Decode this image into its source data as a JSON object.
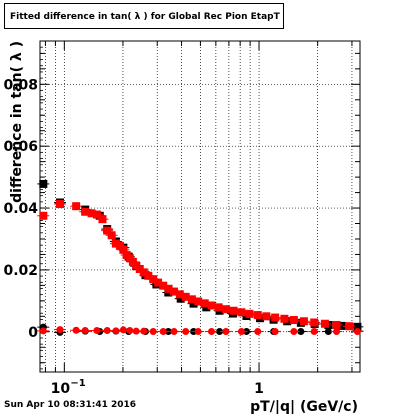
{
  "chart_data": {
    "type": "scatter",
    "title": "Fitted difference in tan( λ ) for Global Rec Pion EtapT",
    "xlabel": "pT/|q| (GeV/c)",
    "ylabel": "difference in tan( λ )",
    "x_scale": "log",
    "xlim": [
      0.075,
      3.3
    ],
    "ylim": [
      -0.013,
      0.094
    ],
    "grid": true,
    "x_tick_labels": [
      {
        "value": 0.1,
        "label": "10",
        "exponent": "−1"
      },
      {
        "value": 1,
        "label": "1",
        "exponent": ""
      }
    ],
    "y_tick_labels": [
      {
        "value": 0,
        "label": "0"
      },
      {
        "value": 0.02,
        "label": "0.02"
      },
      {
        "value": 0.04,
        "label": "0.04"
      },
      {
        "value": 0.06,
        "label": "0.06"
      },
      {
        "value": 0.08,
        "label": "0.08"
      }
    ],
    "series": [
      {
        "color": "#000000",
        "marker": "square",
        "x": [
          0.078,
          0.095,
          0.128,
          0.152,
          0.166,
          0.184,
          0.201,
          0.214,
          0.234,
          0.261,
          0.297,
          0.342,
          0.396,
          0.461,
          0.536,
          0.627,
          0.735,
          0.862,
          1.012,
          1.188,
          1.395,
          1.64,
          1.93,
          2.27,
          2.67,
          3.2
        ],
        "y": [
          0.0478,
          0.0418,
          0.0395,
          0.0375,
          0.0332,
          0.0292,
          0.0272,
          0.0243,
          0.0212,
          0.0183,
          0.0153,
          0.0127,
          0.0107,
          0.0091,
          0.0079,
          0.0068,
          0.0059,
          0.0051,
          0.0044,
          0.0039,
          0.0034,
          0.0029,
          0.0025,
          0.0022,
          0.0019,
          0.0016
        ]
      },
      {
        "color": "#ff0000",
        "marker": "square",
        "x": [
          0.078,
          0.095,
          0.115,
          0.128,
          0.138,
          0.147,
          0.157,
          0.166,
          0.175,
          0.184,
          0.193,
          0.201,
          0.209,
          0.217,
          0.225,
          0.234,
          0.244,
          0.256,
          0.27,
          0.286,
          0.303,
          0.322,
          0.343,
          0.366,
          0.392,
          0.42,
          0.452,
          0.487,
          0.526,
          0.57,
          0.62,
          0.676,
          0.74,
          0.812,
          0.893,
          0.985,
          1.09,
          1.21,
          1.35,
          1.51,
          1.7,
          1.92,
          2.18,
          2.5,
          2.9
        ],
        "y": [
          0.0375,
          0.0413,
          0.0406,
          0.0388,
          0.0383,
          0.0379,
          0.0364,
          0.0327,
          0.0312,
          0.0285,
          0.0278,
          0.0265,
          0.0248,
          0.0238,
          0.0226,
          0.0214,
          0.0203,
          0.0192,
          0.0181,
          0.017,
          0.0159,
          0.0149,
          0.0139,
          0.013,
          0.0121,
          0.0113,
          0.0105,
          0.0098,
          0.0092,
          0.0085,
          0.0079,
          0.0073,
          0.0068,
          0.0063,
          0.0058,
          0.0054,
          0.005,
          0.0046,
          0.0042,
          0.0038,
          0.0034,
          0.003,
          0.0026,
          0.0022,
          0.0018
        ]
      },
      {
        "color": "#000000",
        "marker": "circle",
        "x": [
          0.078,
          0.095,
          0.128,
          0.152,
          0.184,
          0.214,
          0.261,
          0.342,
          0.461,
          0.627,
          0.862,
          1.188,
          1.64,
          2.27,
          3.2
        ],
        "y": [
          0.0015,
          -0.0002,
          0.0002,
          0.0001,
          0.0002,
          0.0001,
          0.0001,
          0.0001,
          0.0001,
          0.0001,
          0.0001,
          0.0001,
          0.0001,
          0.0001,
          0.0002
        ]
      },
      {
        "color": "#ff0000",
        "marker": "circle",
        "x": [
          0.078,
          0.095,
          0.115,
          0.128,
          0.147,
          0.166,
          0.184,
          0.201,
          0.217,
          0.234,
          0.256,
          0.286,
          0.322,
          0.366,
          0.42,
          0.487,
          0.57,
          0.676,
          0.812,
          0.985,
          1.21,
          1.51,
          1.92,
          2.5,
          3.2
        ],
        "y": [
          0.0003,
          0.0007,
          0.0005,
          0.0004,
          0.0004,
          0.0004,
          0.0003,
          0.0006,
          0.0004,
          0.0002,
          0.0002,
          0.0001,
          0.0001,
          0.0001,
          0.0001,
          0.0001,
          0.0001,
          0.0001,
          0.0001,
          0.0001,
          0.0001,
          0.0001,
          0.0001,
          0.0001,
          0.0001
        ]
      }
    ]
  },
  "footer_timestamp": "Sun Apr 10 08:31:41 2016"
}
